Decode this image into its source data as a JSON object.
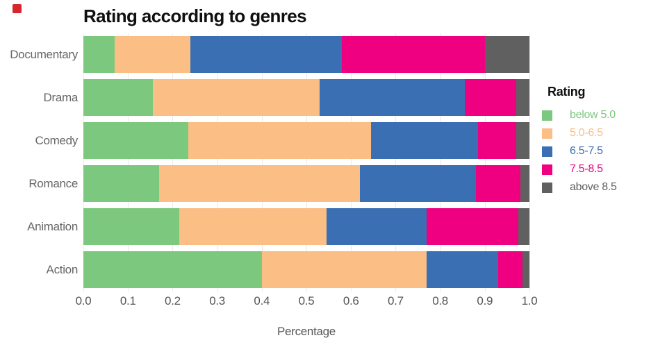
{
  "brand": {
    "mark_color": "#d7262c"
  },
  "header": {
    "title": "Rating according to genres"
  },
  "chart_data": {
    "type": "bar",
    "orientation": "horizontal",
    "stacked": true,
    "title": "Rating according to genres",
    "xlabel": "Percentage",
    "ylabel": "",
    "xlim": [
      0,
      1
    ],
    "xticks": [
      "0.0",
      "0.1",
      "0.2",
      "0.3",
      "0.4",
      "0.5",
      "0.6",
      "0.7",
      "0.8",
      "0.9",
      "1.0"
    ],
    "grid": true,
    "gridline_color": "#f3e6e6",
    "legend_title": "Rating",
    "legend_position": "right",
    "categories": [
      "Documentary",
      "Drama",
      "Comedy",
      "Romance",
      "Animation",
      "Action"
    ],
    "series": [
      {
        "name": "below 5.0",
        "color": "#7cc87e",
        "values": [
          0.07,
          0.155,
          0.235,
          0.17,
          0.215,
          0.4
        ]
      },
      {
        "name": "5.0-6.5",
        "color": "#fbbe85",
        "values": [
          0.17,
          0.375,
          0.41,
          0.45,
          0.33,
          0.37
        ]
      },
      {
        "name": "6.5-7.5",
        "color": "#3a6fb4",
        "values": [
          0.34,
          0.325,
          0.24,
          0.26,
          0.225,
          0.16
        ]
      },
      {
        "name": "7.5-8.5",
        "color": "#ef0080",
        "values": [
          0.32,
          0.115,
          0.085,
          0.1,
          0.205,
          0.055
        ]
      },
      {
        "name": "above 8.5",
        "color": "#606060",
        "values": [
          0.1,
          0.03,
          0.03,
          0.02,
          0.025,
          0.015
        ]
      }
    ],
    "text_colors": {
      "axis_labels": "#666666",
      "tick_labels": "#555555",
      "title": "#101010"
    }
  }
}
